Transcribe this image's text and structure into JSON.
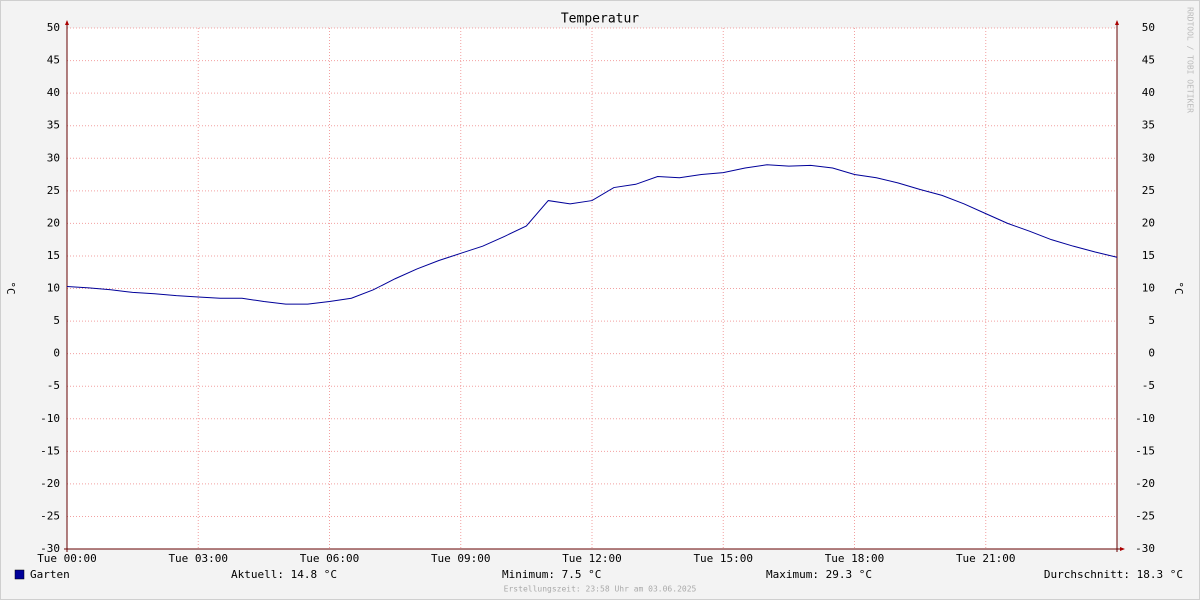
{
  "chart_data": {
    "type": "line",
    "title": "Temperatur",
    "ylabel": "°C",
    "x": [
      0,
      0.5,
      1,
      1.5,
      2,
      2.5,
      3,
      3.5,
      4,
      4.5,
      5,
      5.5,
      6,
      6.5,
      7,
      7.5,
      8,
      8.5,
      9,
      9.5,
      10,
      10.5,
      11,
      11.5,
      12,
      12.5,
      13,
      13.5,
      14,
      14.5,
      15,
      15.5,
      16,
      16.5,
      17,
      17.5,
      18,
      18.5,
      19,
      19.5,
      20,
      20.5,
      21,
      21.5,
      22,
      22.5,
      23,
      23.5,
      24
    ],
    "series": [
      {
        "name": "Garten",
        "color": "#000099",
        "values": [
          10.3,
          10.1,
          9.8,
          9.4,
          9.2,
          8.9,
          8.7,
          8.5,
          8.5,
          8.0,
          7.6,
          7.6,
          8.0,
          8.5,
          9.8,
          11.5,
          13.0,
          14.3,
          15.4,
          16.5,
          18.0,
          19.6,
          23.5,
          23.0,
          23.5,
          25.5,
          26.0,
          27.2,
          27.0,
          27.5,
          27.8,
          28.5,
          29.0,
          28.8,
          28.9,
          28.5,
          27.5,
          27.0,
          26.2,
          25.2,
          24.3,
          23.0,
          21.5,
          20.0,
          18.8,
          17.5,
          16.5,
          15.6,
          14.8
        ]
      }
    ],
    "xlim": [
      0,
      24
    ],
    "xticks": [
      {
        "value": 0,
        "label": "Tue 00:00"
      },
      {
        "value": 3,
        "label": "Tue 03:00"
      },
      {
        "value": 6,
        "label": "Tue 06:00"
      },
      {
        "value": 9,
        "label": "Tue 09:00"
      },
      {
        "value": 12,
        "label": "Tue 12:00"
      },
      {
        "value": 15,
        "label": "Tue 15:00"
      },
      {
        "value": 18,
        "label": "Tue 18:00"
      },
      {
        "value": 21,
        "label": "Tue 21:00"
      }
    ],
    "ylim": [
      -30,
      50
    ],
    "yticks": [
      -30,
      -25,
      -20,
      -15,
      -10,
      -5,
      0,
      5,
      10,
      15,
      20,
      25,
      30,
      35,
      40,
      45,
      50
    ],
    "grid": true,
    "stats": [
      "Aktuell: 14.8 °C",
      "Minimum: 7.5 °C",
      "Maximum: 29.3 °C",
      "Durchschnitt: 18.3 °C"
    ],
    "footer": "Erstellungszeit: 23:58 Uhr am 03.06.2025",
    "watermark": "RRDTOOL / TOBI OETIKER"
  }
}
